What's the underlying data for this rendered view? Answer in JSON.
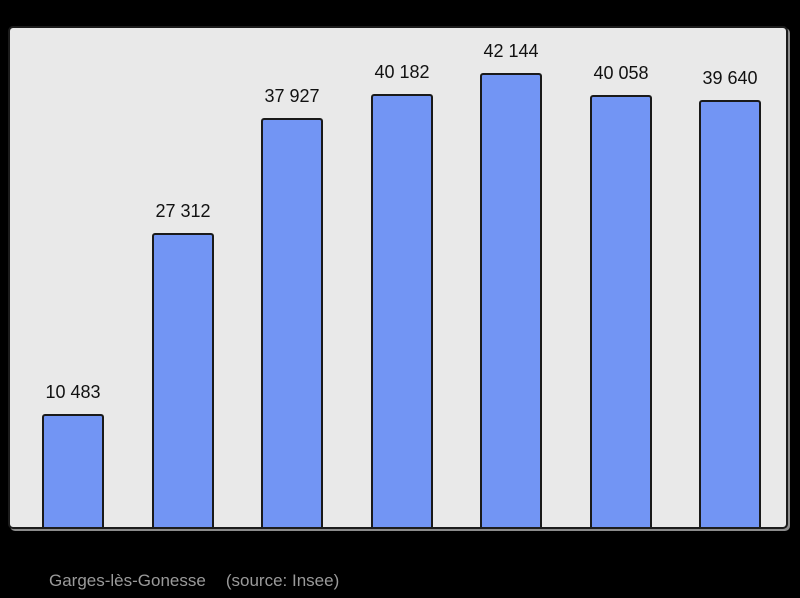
{
  "caption": {
    "city": "Garges-lès-Gonesse",
    "source": "(source: Insee)"
  },
  "chart_data": {
    "type": "bar",
    "values": [
      10483,
      27312,
      37927,
      40182,
      42144,
      40058,
      39640
    ],
    "bar_labels": [
      "10 483",
      "27 312",
      "37 927",
      "40 182",
      "42 144",
      "40 058",
      "39 640"
    ],
    "title": "",
    "xlabel": "",
    "ylabel": "",
    "ylim": [
      0,
      46300
    ],
    "grid": false,
    "legend": false,
    "axes_tick_labels_visible": false,
    "annotation": "value labels shown above each bar",
    "colors": {
      "bar_fill": "#7295f4",
      "bar_border": "#1a1a1a",
      "panel_background": "#e9e9e9",
      "panel_border": "#1c1c1c",
      "page_background": "#000000",
      "value_label_text": "#111111",
      "caption_text": "#9a9a9a"
    }
  }
}
